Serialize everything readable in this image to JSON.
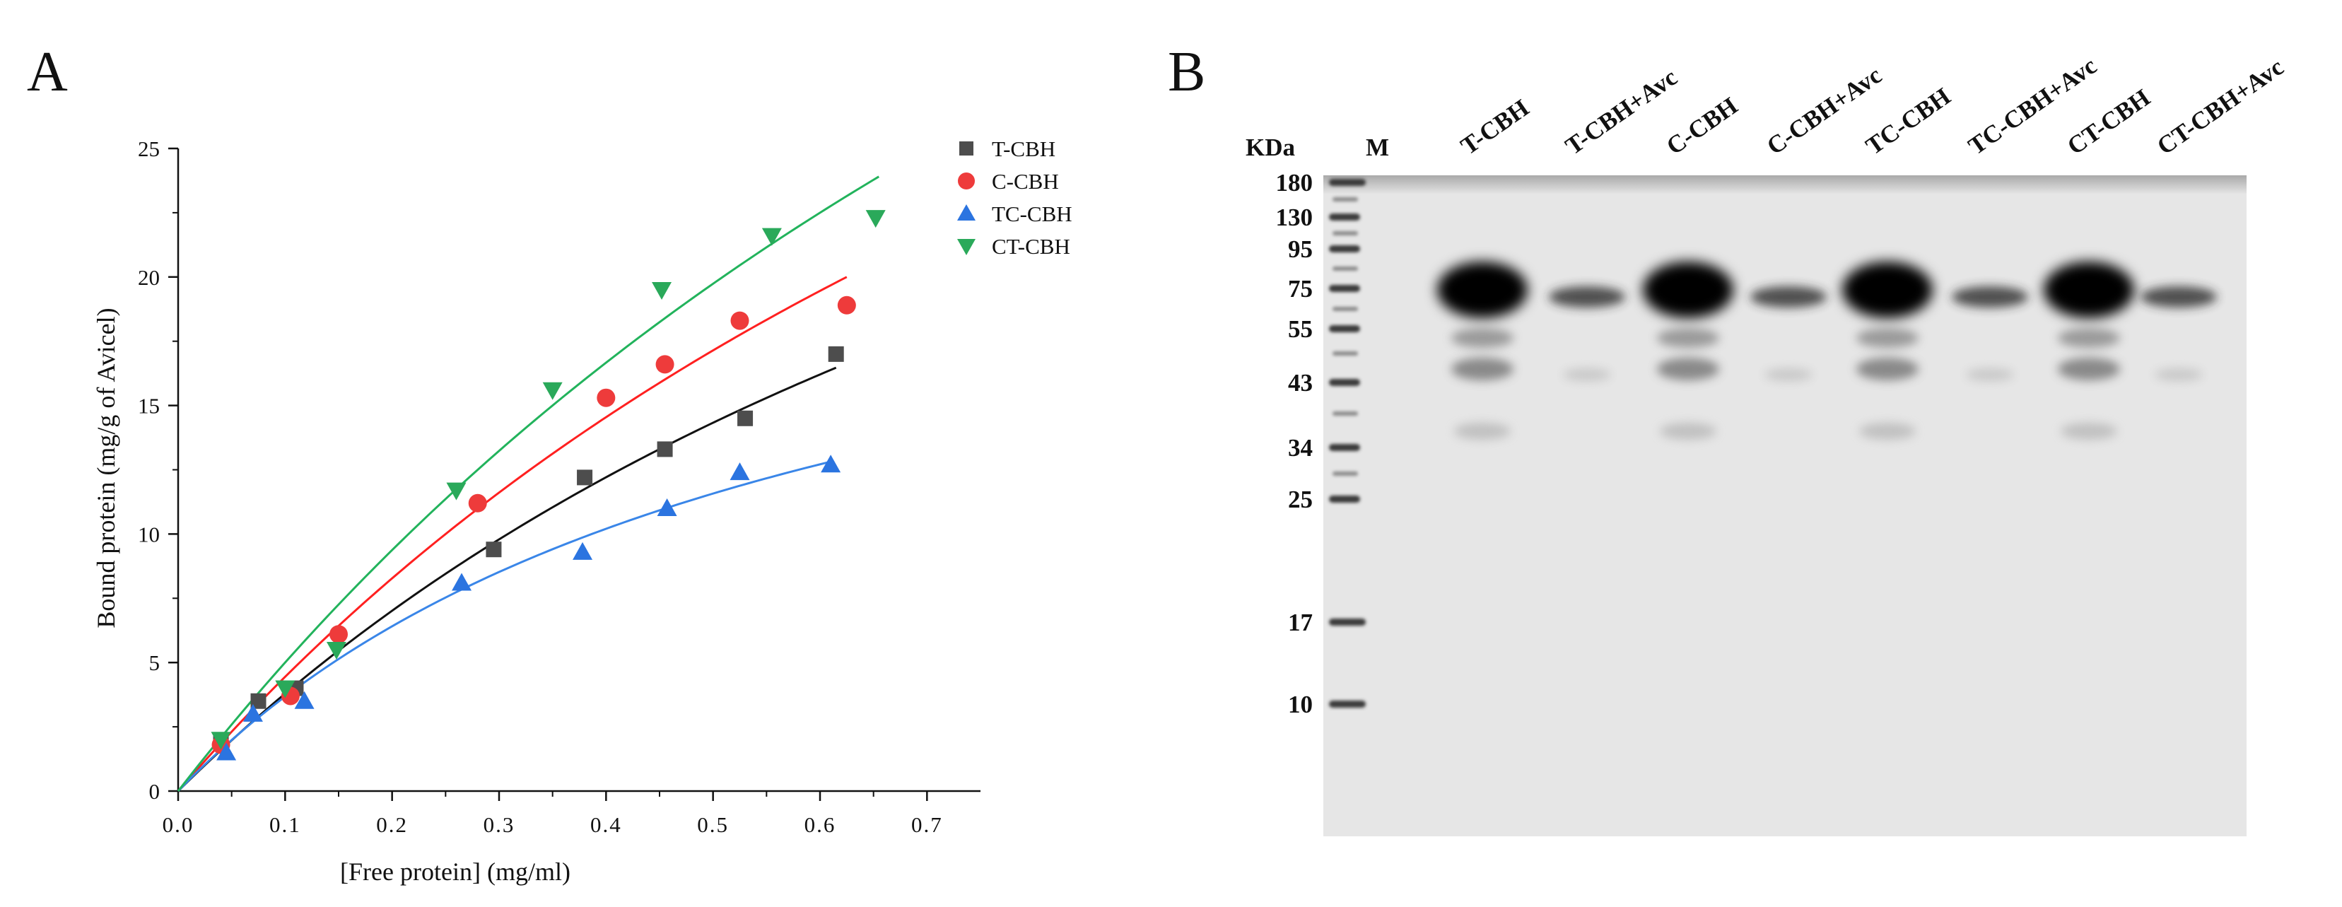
{
  "panels": {
    "a_letter": "A",
    "b_letter": "B"
  },
  "chart_data": [
    {
      "type": "scatter",
      "xlabel": "[Free protein] (mg/ml)",
      "ylabel": "Bound protein (mg/g of Avicel)",
      "xlim": [
        0,
        0.75
      ],
      "ylim": [
        0,
        25
      ],
      "xticks": [
        "0.0",
        "0.1",
        "0.2",
        "0.3",
        "0.4",
        "0.5",
        "0.6",
        "0.7"
      ],
      "yticks": [
        "0",
        "5",
        "10",
        "15",
        "20",
        "25"
      ],
      "legend_position": "top-right",
      "series": [
        {
          "name": "T-CBH",
          "color": "#4d4d4d",
          "fit_color": "#111111",
          "marker": "square",
          "x": [
            0.04,
            0.075,
            0.11,
            0.295,
            0.38,
            0.455,
            0.53,
            0.615
          ],
          "y": [
            1.9,
            3.5,
            4.0,
            9.4,
            12.2,
            13.3,
            14.5,
            17.0
          ],
          "fit": {
            "bmax": 47,
            "kd": 1.14,
            "xmax": 0.615
          }
        },
        {
          "name": "C-CBH",
          "color": "#ee3b3b",
          "fit_color": "#ff2020",
          "marker": "circle",
          "x": [
            0.04,
            0.105,
            0.15,
            0.28,
            0.4,
            0.455,
            0.525,
            0.625
          ],
          "y": [
            1.8,
            3.7,
            6.1,
            11.2,
            15.3,
            16.6,
            18.3,
            18.9
          ],
          "fit": {
            "bmax": 60,
            "kd": 1.25,
            "xmax": 0.625
          }
        },
        {
          "name": "TC-CBH",
          "color": "#2b74e0",
          "fit_color": "#3a86e8",
          "marker": "triangle-up",
          "x": [
            0.045,
            0.07,
            0.118,
            0.265,
            0.378,
            0.457,
            0.525,
            0.61
          ],
          "y": [
            1.5,
            3.0,
            3.5,
            8.1,
            9.3,
            11.0,
            12.4,
            12.7
          ],
          "fit": {
            "bmax": 25,
            "kd": 0.58,
            "xmax": 0.61
          }
        },
        {
          "name": "CT-CBH",
          "color": "#2aa95a",
          "fit_color": "#22b35c",
          "marker": "triangle-down",
          "x": [
            0.04,
            0.1,
            0.148,
            0.26,
            0.35,
            0.452,
            0.555,
            0.652
          ],
          "y": [
            2.0,
            4.0,
            5.5,
            11.7,
            15.6,
            19.5,
            21.6,
            22.3
          ],
          "fit": {
            "bmax": 75,
            "kd": 1.4,
            "xmax": 0.655
          }
        }
      ]
    },
    {
      "type": "table",
      "description_unit": "KDa",
      "marker_header": "M",
      "lanes": [
        "T-CBH",
        "T-CBH+Avc",
        "C-CBH",
        "C-CBH+Avc",
        "TC-CBH",
        "TC-CBH+Avc",
        "CT-CBH",
        "CT-CBH+Avc"
      ],
      "mw_values": [
        "180",
        "130",
        "95",
        "75",
        "55",
        "43",
        "34",
        "25",
        "17",
        "10"
      ]
    }
  ]
}
